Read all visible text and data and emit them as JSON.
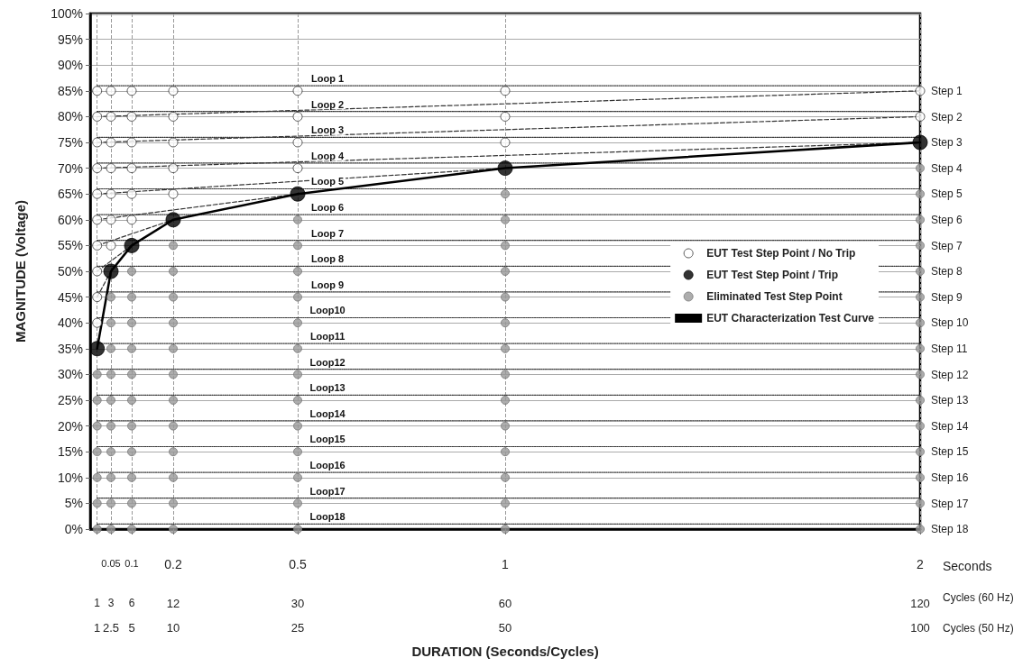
{
  "chart_data": {
    "type": "scatter",
    "xlabel": "DURATION (Seconds/Cycles)",
    "ylabel": "MAGNITUDE (Voltage)",
    "xlim": [
      0,
      2
    ],
    "xticks": [
      {
        "value": 0.0167,
        "label": null
      },
      0.05,
      0.1,
      0.2,
      0.5,
      1,
      2
    ],
    "x2lim": [
      0,
      120
    ],
    "x2ticks": [
      1,
      3,
      6,
      12,
      30,
      60,
      120
    ],
    "ylim": [
      0,
      100
    ],
    "yticks": [
      {
        "value": 0,
        "label": "0%"
      },
      {
        "value": 5,
        "label": "5%"
      },
      {
        "value": 10,
        "label": "10%"
      },
      {
        "value": 15,
        "label": "15%"
      },
      {
        "value": 20,
        "label": "20%"
      },
      {
        "value": 25,
        "label": "25%"
      },
      {
        "value": 30,
        "label": "30%"
      },
      {
        "value": 35,
        "label": "35%"
      },
      {
        "value": 40,
        "label": "40%"
      },
      {
        "value": 45,
        "label": "45%"
      },
      {
        "value": 50,
        "label": "50%"
      },
      {
        "value": 55,
        "label": "55%"
      },
      {
        "value": 60,
        "label": "60%"
      },
      {
        "value": 65,
        "label": "65%"
      },
      {
        "value": 70,
        "label": "70%"
      },
      {
        "value": 75,
        "label": "75%"
      },
      {
        "value": 80,
        "label": "80%"
      },
      {
        "value": 85,
        "label": "85%"
      },
      {
        "value": 90,
        "label": "90%"
      },
      {
        "value": 95,
        "label": "95%"
      },
      {
        "value": 100,
        "label": "100%"
      }
    ],
    "grid": true,
    "legend": "right",
    "marker": "circle",
    "annotations": [
      "1",
      "2.5",
      "5",
      "10",
      "25",
      "50",
      "100",
      "Seconds",
      "Cycles (60 Hz)",
      "Cycles (50 Hz)",
      "Loop 1",
      "Loop 2",
      "Loop 3",
      "Loop 4",
      "Loop 5",
      "Loop 6",
      "Loop 7",
      "Loop 8",
      "Loop 9",
      "Loop10",
      "Loop11",
      "Loop12",
      "Loop13",
      "Loop14",
      "Loop15",
      "Loop16",
      "Loop17",
      "Loop18",
      "Step 1",
      "Step 2",
      "Step 3",
      "Step 4",
      "Step 5",
      "Step 6",
      "Step 7",
      "Step 8",
      "Step 9",
      "Step 10",
      "Step 11",
      "Step 12",
      "Step 13",
      "Step 14",
      "Step 15",
      "Step 16",
      "Step 17",
      "Step 18"
    ],
    "series": [
      {
        "type": "line",
        "line_style": "dotted",
        "color": "#333333",
        "marker": "none",
        "x": [
          0.0167,
          2
        ],
        "values": [
          86,
          86
        ]
      },
      {
        "type": "line",
        "line_style": "dotted",
        "color": "#333333",
        "marker": "none",
        "x": [
          0.0167,
          2
        ],
        "values": [
          81,
          81
        ]
      },
      {
        "type": "line",
        "line_style": "dotted",
        "color": "#333333",
        "marker": "none",
        "x": [
          0.0167,
          2
        ],
        "values": [
          76,
          76
        ]
      },
      {
        "type": "line",
        "line_style": "dotted",
        "color": "#333333",
        "marker": "none",
        "x": [
          0.0167,
          2
        ],
        "values": [
          71,
          71
        ]
      },
      {
        "type": "line",
        "line_style": "dotted",
        "color": "#333333",
        "marker": "none",
        "x": [
          0.0167,
          2
        ],
        "values": [
          66,
          66
        ]
      },
      {
        "type": "line",
        "line_style": "dotted",
        "color": "#333333",
        "marker": "none",
        "x": [
          0.0167,
          2
        ],
        "values": [
          61,
          61
        ]
      },
      {
        "type": "line",
        "line_style": "dotted",
        "color": "#333333",
        "marker": "none",
        "x": [
          0.0167,
          2
        ],
        "values": [
          56,
          56
        ]
      },
      {
        "type": "line",
        "line_style": "dotted",
        "color": "#333333",
        "marker": "none",
        "x": [
          0.0167,
          2
        ],
        "values": [
          51,
          51
        ]
      },
      {
        "type": "line",
        "line_style": "dotted",
        "color": "#333333",
        "marker": "none",
        "x": [
          0.0167,
          2
        ],
        "values": [
          46,
          46
        ]
      },
      {
        "type": "line",
        "line_style": "dotted",
        "color": "#333333",
        "marker": "none",
        "x": [
          0.0167,
          2
        ],
        "values": [
          41,
          41
        ]
      },
      {
        "type": "line",
        "line_style": "dotted",
        "color": "#333333",
        "marker": "none",
        "x": [
          0.0167,
          2
        ],
        "values": [
          36,
          36
        ]
      },
      {
        "type": "line",
        "line_style": "dotted",
        "color": "#333333",
        "marker": "none",
        "x": [
          0.0167,
          2
        ],
        "values": [
          31,
          31
        ]
      },
      {
        "type": "line",
        "line_style": "dotted",
        "color": "#333333",
        "marker": "none",
        "x": [
          0.0167,
          2
        ],
        "values": [
          26,
          26
        ]
      },
      {
        "type": "line",
        "line_style": "dotted",
        "color": "#333333",
        "marker": "none",
        "x": [
          0.0167,
          2
        ],
        "values": [
          21,
          21
        ]
      },
      {
        "type": "line",
        "line_style": "dotted",
        "color": "#333333",
        "marker": "none",
        "x": [
          0.0167,
          2
        ],
        "values": [
          16,
          16
        ]
      },
      {
        "type": "line",
        "line_style": "dotted",
        "color": "#333333",
        "marker": "none",
        "x": [
          0.0167,
          2
        ],
        "values": [
          11,
          11
        ]
      },
      {
        "type": "line",
        "line_style": "dotted",
        "color": "#333333",
        "marker": "none",
        "x": [
          0.0167,
          2
        ],
        "values": [
          6,
          6
        ]
      },
      {
        "type": "line",
        "line_style": "dotted",
        "color": "#333333",
        "marker": "none",
        "x": [
          0.0167,
          2
        ],
        "values": [
          1,
          1
        ]
      },
      {
        "type": "line",
        "line_style": "dashed",
        "color": "#333333",
        "marker": "none",
        "x": [
          0.0167,
          2
        ],
        "values": [
          80,
          85
        ]
      },
      {
        "type": "line",
        "line_style": "dashed",
        "color": "#333333",
        "marker": "none",
        "x": [
          0.0167,
          2
        ],
        "values": [
          75,
          80
        ]
      },
      {
        "type": "line",
        "line_style": "dashed",
        "color": "#333333",
        "marker": "none",
        "x": [
          0.0167,
          2
        ],
        "values": [
          70,
          75
        ]
      },
      {
        "type": "line",
        "line_style": "dashed",
        "color": "#333333",
        "marker": "none",
        "x": [
          0.0167,
          1
        ],
        "values": [
          65,
          70
        ]
      },
      {
        "type": "line",
        "line_style": "dashed",
        "color": "#333333",
        "marker": "none",
        "x": [
          0.0167,
          0.5
        ],
        "values": [
          60,
          65
        ]
      },
      {
        "type": "line",
        "line_style": "dashed",
        "color": "#333333",
        "marker": "none",
        "x": [
          0.0167,
          0.2
        ],
        "values": [
          55,
          60
        ]
      },
      {
        "type": "line",
        "line_style": "dashed",
        "color": "#333333",
        "marker": "none",
        "x": [
          0.0167,
          0.1
        ],
        "values": [
          50,
          55
        ]
      },
      {
        "type": "line",
        "line_style": "dashed",
        "color": "#333333",
        "marker": "none",
        "x": [
          0.0167,
          0.05
        ],
        "values": [
          45,
          50
        ]
      },
      {
        "name": "EUT Test Step Point / No Trip",
        "color": "#ffffff",
        "x": [
          0.0167,
          0.0167,
          0.0167,
          0.0167,
          0.0167,
          0.0167,
          0.0167,
          0.0167,
          0.0167,
          0.0167,
          0.05,
          0.05,
          0.05,
          0.05,
          0.05,
          0.05,
          0.05,
          0.1,
          0.1,
          0.1,
          0.1,
          0.1,
          0.1,
          0.2,
          0.2,
          0.2,
          0.2,
          0.2,
          0.5,
          0.5,
          0.5,
          0.5,
          1,
          1,
          1,
          2,
          2
        ],
        "values": [
          40,
          45,
          50,
          55,
          60,
          65,
          70,
          75,
          80,
          85,
          55,
          60,
          65,
          70,
          75,
          80,
          85,
          60,
          65,
          70,
          75,
          80,
          85,
          65,
          70,
          75,
          80,
          85,
          70,
          75,
          80,
          85,
          75,
          80,
          85,
          80,
          85
        ]
      },
      {
        "name": "EUT Test Step Point / Trip",
        "color": "#000000",
        "x": [
          0.0167,
          0.05,
          0.1,
          0.2,
          0.5,
          1,
          2
        ],
        "values": [
          35,
          50,
          55,
          60,
          65,
          70,
          75
        ]
      },
      {
        "name": "Eliminated Test Step Point",
        "color": "#999999",
        "x": [
          0.0167,
          0.0167,
          0.0167,
          0.0167,
          0.0167,
          0.0167,
          0.0167,
          0.05,
          0.05,
          0.05,
          0.05,
          0.05,
          0.05,
          0.05,
          0.05,
          0.05,
          0.05,
          0.1,
          0.1,
          0.1,
          0.1,
          0.1,
          0.1,
          0.1,
          0.1,
          0.1,
          0.1,
          0.1,
          0.2,
          0.2,
          0.2,
          0.2,
          0.2,
          0.2,
          0.2,
          0.2,
          0.2,
          0.2,
          0.2,
          0.2,
          0.5,
          0.5,
          0.5,
          0.5,
          0.5,
          0.5,
          0.5,
          0.5,
          0.5,
          0.5,
          0.5,
          0.5,
          0.5,
          1,
          1,
          1,
          1,
          1,
          1,
          1,
          1,
          1,
          1,
          1,
          1,
          1,
          1,
          2,
          2,
          2,
          2,
          2,
          2,
          2,
          2,
          2,
          2,
          2,
          2,
          2,
          2,
          2
        ],
        "values": [
          0,
          5,
          10,
          15,
          20,
          25,
          30,
          0,
          5,
          10,
          15,
          20,
          25,
          30,
          35,
          40,
          45,
          0,
          5,
          10,
          15,
          20,
          25,
          30,
          35,
          40,
          45,
          50,
          0,
          5,
          10,
          15,
          20,
          25,
          30,
          35,
          40,
          45,
          50,
          55,
          0,
          5,
          10,
          15,
          20,
          25,
          30,
          35,
          40,
          45,
          50,
          55,
          60,
          0,
          5,
          10,
          15,
          20,
          25,
          30,
          35,
          40,
          45,
          50,
          55,
          60,
          65,
          0,
          5,
          10,
          15,
          20,
          25,
          30,
          35,
          40,
          45,
          50,
          55,
          60,
          65,
          70
        ]
      },
      {
        "name": "EUT Characterization Test Curve",
        "type": "line",
        "line_style": "solid",
        "marker": "none",
        "color": "#000000",
        "x": [
          0.0167,
          0.05,
          0.1,
          0.2,
          0.5,
          1,
          2
        ],
        "values": [
          35,
          50,
          55,
          60,
          65,
          70,
          75
        ]
      }
    ]
  }
}
